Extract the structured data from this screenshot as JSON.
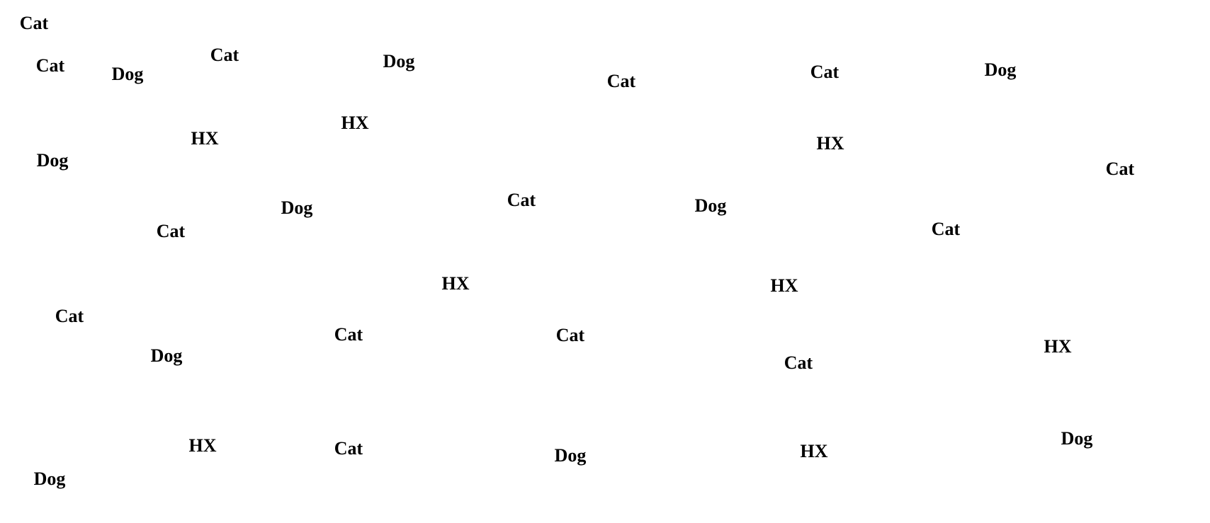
{
  "text_color": "#000000",
  "background": "#ffffff",
  "words": [
    "Cat",
    "Cat",
    "Dog",
    "Cat",
    "Dog",
    "Cat",
    "Cat",
    "Dog",
    "HX",
    "HX",
    "HX",
    "Dog",
    "Cat",
    "Dog",
    "Cat",
    "Dog",
    "Cat",
    "Cat",
    "HX",
    "HX",
    "Cat",
    "Cat",
    "Cat",
    "Dog",
    "Cat",
    "HX",
    "HX",
    "Cat",
    "Dog",
    "HX",
    "Dog",
    "Dog"
  ]
}
